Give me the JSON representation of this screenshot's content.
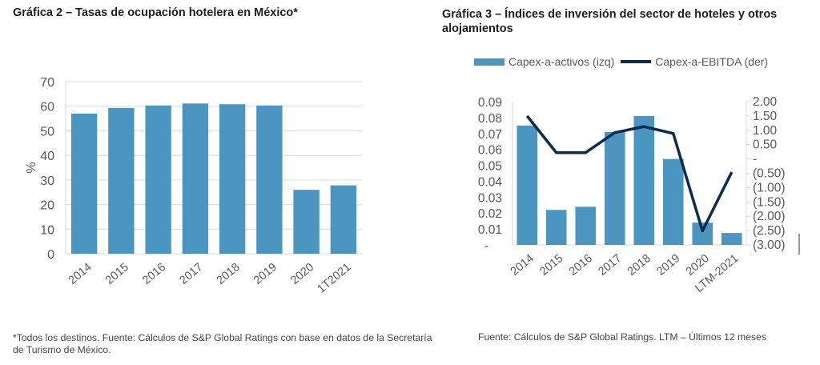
{
  "left_chart": {
    "title": "Gráfica 2 – Tasas de ocupación hotelera en México*",
    "note": "*Todos los destinos. Fuente: Cálculos de S&P Global Ratings con base en datos de la Secretaría de Turismo de México."
  },
  "right_chart": {
    "title": "Gráfica 3 – Índices de inversión del sector de hoteles y otros alojamientos",
    "note": "Fuente: Cálculos de S&P Global Ratings. LTM – Últimos 12 meses",
    "legend": [
      "Capex-a-activos (izq)",
      "Capex-a-EBITDA (der)"
    ]
  },
  "colors": {
    "bar": "#4a96c0",
    "line": "#0d2b52",
    "grid": "#d9d9d9",
    "text": "#595959"
  },
  "chart_data": [
    {
      "type": "bar",
      "title": "Gráfica 2 – Tasas de ocupación hotelera en México*",
      "categories": [
        "2014",
        "2015",
        "2016",
        "2017",
        "2018",
        "2019",
        "2020",
        "1T2021"
      ],
      "values": [
        57.0,
        59.3,
        60.3,
        61.1,
        60.8,
        60.3,
        26.0,
        27.8
      ],
      "xlabel": "",
      "ylabel": "%",
      "ylim": [
        0,
        70
      ],
      "yticks": [
        "0",
        "10",
        "20",
        "30",
        "40",
        "50",
        "60",
        "70"
      ],
      "grid": true
    },
    {
      "type": "bar+line",
      "title": "Gráfica 3 – Índices de inversión del sector de hoteles y otros alojamientos",
      "categories": [
        "2014",
        "2015",
        "2016",
        "2017",
        "2018",
        "2019",
        "2020",
        "LTM-2021"
      ],
      "series": [
        {
          "name": "Capex-a-activos (izq)",
          "type": "bar",
          "axis": "left",
          "values": [
            0.075,
            0.022,
            0.024,
            0.071,
            0.081,
            0.054,
            0.014,
            0.0075
          ]
        },
        {
          "name": "Capex-a-EBITDA (der)",
          "type": "line",
          "axis": "right",
          "values": [
            1.5,
            0.22,
            0.22,
            0.92,
            1.13,
            0.89,
            -2.51,
            -0.46
          ]
        }
      ],
      "ylim_left": [
        0,
        0.09
      ],
      "yticks_left": [
        "-",
        "0.01",
        "0.02",
        "0.03",
        "0.04",
        "0.05",
        "0.06",
        "0.07",
        "0.08",
        "0.09"
      ],
      "ylim_right": [
        -3.0,
        2.0
      ],
      "yticks_right": [
        "(3.00)",
        "(2.50)",
        "(2.00)",
        "(1.50)",
        "(1.00)",
        "(0.50)",
        "-",
        "0.50",
        "1.00",
        "1.50",
        "2.00"
      ],
      "legend_position": "top",
      "grid": false
    }
  ]
}
